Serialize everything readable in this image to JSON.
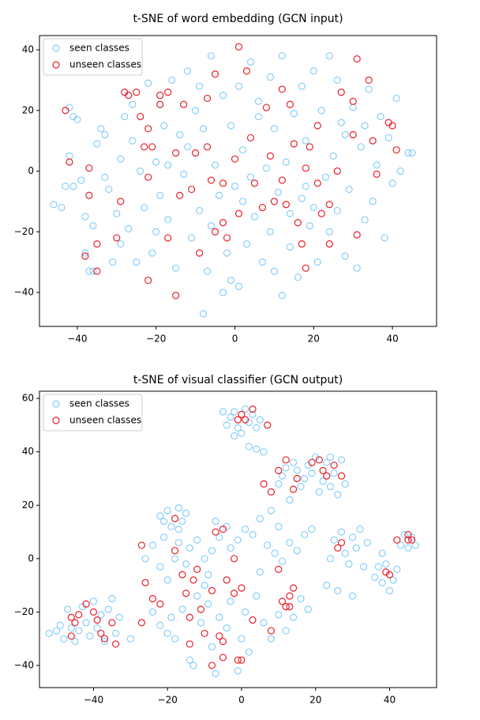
{
  "chart_data": [
    {
      "type": "scatter",
      "title": "t-SNE of word embedding (GCN input)",
      "legend": "upper left",
      "xlim": [
        -49.6,
        51.2
      ],
      "ylim": [
        -51.2,
        44.7
      ],
      "xticks": [
        {
          "value": -40,
          "label": "−40"
        },
        {
          "value": -20,
          "label": "−20"
        },
        0,
        20,
        40
      ],
      "yticks": [
        {
          "value": -40,
          "label": "−40"
        },
        {
          "value": -20,
          "label": "−20"
        },
        0,
        20,
        40
      ],
      "series": [
        {
          "name": "seen classes",
          "color": "#87cefa",
          "x": [
            -46,
            -44,
            -43,
            -42,
            -41,
            -42,
            -41,
            -40,
            -39,
            -38,
            -37,
            -36,
            -36,
            -35,
            -34,
            -33,
            -32,
            -31,
            -30,
            -29,
            -28,
            -27,
            -26,
            -25,
            -24,
            -23,
            -22,
            -21,
            -20,
            -19,
            -18,
            -17,
            -16,
            -15,
            -14,
            -13,
            -12,
            -11,
            -10,
            -9,
            -8,
            -8,
            -7,
            -6,
            -5,
            -4,
            -3,
            -2,
            -1,
            -1,
            0,
            1,
            1,
            2,
            3,
            4,
            5,
            6,
            7,
            8,
            9,
            9,
            10,
            11,
            12,
            12,
            13,
            14,
            15,
            16,
            17,
            17,
            18,
            19,
            20,
            21,
            22,
            23,
            24,
            25,
            26,
            26,
            27,
            28,
            29,
            30,
            31,
            32,
            33,
            34,
            35,
            36,
            37,
            38,
            39,
            40,
            41,
            42,
            44,
            45,
            -33,
            -29,
            -20,
            -12,
            -6,
            2,
            6,
            14,
            20,
            28,
            -38,
            -26,
            -17,
            -3,
            10,
            18,
            33,
            -9,
            4,
            24
          ],
          "y": [
            -11,
            -12,
            -5,
            5,
            -5,
            21,
            18,
            17,
            -3,
            -27,
            -33,
            -33,
            -18,
            9,
            14,
            12,
            -6,
            -30,
            -14,
            4,
            18,
            -19,
            10,
            -30,
            0,
            -12,
            29,
            -27,
            3,
            -8,
            15,
            -16,
            30,
            -32,
            12,
            -1,
            33,
            -22,
            20,
            -13,
            -47,
            14,
            -33,
            38,
            2,
            -8,
            25,
            -27,
            15,
            -36,
            -5,
            28,
            -38,
            7,
            -24,
            36,
            -15,
            18,
            -30,
            1,
            31,
            -20,
            14,
            -7,
            38,
            -41,
            3,
            -25,
            19,
            -35,
            28,
            -9,
            10,
            -18,
            33,
            -30,
            20,
            -2,
            -20,
            5,
            30,
            -13,
            16,
            -28,
            -6,
            21,
            -32,
            8,
            -16,
            27,
            -10,
            2,
            18,
            -22,
            11,
            -4,
            24,
            0,
            6,
            6,
            -2,
            -24,
            -20,
            8,
            -18,
            -10,
            23,
            -14,
            -12,
            12,
            -15,
            22,
            2,
            -40,
            -33,
            -5,
            15,
            28,
            -2,
            38
          ]
        },
        {
          "name": "unseen classes",
          "color": "#e8202a",
          "x": [
            -43,
            -42,
            -37,
            -37,
            -38,
            -35,
            -35,
            -30,
            -29,
            -28,
            -27,
            -25,
            -24,
            -23,
            -22,
            -22,
            -22,
            -21,
            -19,
            -19,
            -17,
            -17,
            -15,
            -15,
            -14,
            -13,
            -11,
            -10,
            -9,
            -7,
            -7,
            -6,
            -5,
            -5,
            -3,
            -3,
            -2,
            0,
            1,
            1,
            3,
            4,
            5,
            7,
            8,
            9,
            10,
            12,
            12,
            13,
            14,
            15,
            16,
            17,
            18,
            18,
            19,
            21,
            21,
            22,
            24,
            24,
            26,
            27,
            30,
            30,
            31,
            31,
            34,
            35,
            36,
            39,
            40,
            41
          ],
          "y": [
            20,
            3,
            1,
            -8,
            -28,
            -33,
            -24,
            -22,
            -10,
            26,
            25,
            26,
            18,
            8,
            14,
            -2,
            -36,
            8,
            22,
            25,
            26,
            -22,
            6,
            -41,
            -8,
            22,
            -6,
            6,
            -27,
            24,
            8,
            -3,
            32,
            -20,
            -17,
            -4,
            -22,
            4,
            -14,
            41,
            33,
            11,
            -4,
            -12,
            21,
            5,
            -10,
            -3,
            27,
            -11,
            22,
            9,
            -17,
            -24,
            1,
            -32,
            8,
            15,
            -4,
            -14,
            -11,
            -24,
            0,
            26,
            12,
            23,
            -21,
            37,
            30,
            10,
            -1,
            16,
            15,
            7
          ]
        }
      ]
    },
    {
      "type": "scatter",
      "title": "t-SNE of visual classifier (GCN output)",
      "legend": "upper left",
      "xlim": [
        -54.6,
        52.7
      ],
      "ylim": [
        -48.3,
        62.7
      ],
      "xticks": [
        {
          "value": -40,
          "label": "−40"
        },
        {
          "value": -20,
          "label": "−20"
        },
        0,
        20,
        40
      ],
      "yticks": [
        {
          "value": -40,
          "label": "−40"
        },
        {
          "value": -20,
          "label": "−20"
        },
        0,
        20,
        40,
        60
      ],
      "series": [
        {
          "name": "seen classes",
          "color": "#87cefa",
          "x": [
            -4,
            -3,
            -2,
            -1,
            1,
            2,
            3,
            4,
            5,
            -5,
            0,
            2,
            4,
            6,
            -2,
            10,
            11,
            12,
            14,
            15,
            16,
            17,
            18,
            20,
            21,
            22,
            23,
            24,
            25,
            26,
            27,
            28,
            13,
            19,
            24,
            -22,
            -21,
            -20,
            -19,
            -17,
            -16,
            -15,
            -17,
            -26,
            -24,
            -22,
            -21,
            -20,
            -18,
            -17,
            -15,
            -14,
            -12,
            -10,
            -9,
            -8,
            -7,
            -6,
            -4,
            -3,
            -1,
            1,
            3,
            5,
            7,
            9,
            11,
            13,
            15,
            17,
            19,
            8,
            10,
            24,
            25,
            27,
            28,
            29,
            30,
            31,
            32,
            33,
            34,
            23,
            26,
            30,
            36,
            37,
            38,
            39,
            41,
            42,
            43,
            44,
            45,
            46,
            47,
            40,
            38,
            -52,
            -50,
            -49,
            -48,
            -47,
            -46,
            -45,
            -44,
            -43,
            -42,
            -41,
            -40,
            -39,
            -38,
            -37,
            -36,
            -35,
            -34,
            -33,
            -30,
            -22,
            -20,
            -19,
            -18,
            -16,
            -14,
            -13,
            -12,
            -11,
            -9,
            -8,
            -7,
            -6,
            -4,
            -3,
            -1,
            0,
            1,
            2,
            4,
            6,
            8,
            10,
            12,
            14,
            16,
            18,
            -24,
            -10,
            5
          ],
          "y": [
            50,
            53,
            55,
            49,
            56,
            51,
            54,
            49,
            52,
            55,
            47,
            42,
            41,
            40,
            46,
            28,
            31,
            34,
            36,
            33,
            27,
            30,
            35,
            38,
            25,
            29,
            36,
            27,
            32,
            24,
            37,
            28,
            22,
            32,
            38,
            16,
            14,
            18,
            12,
            19,
            14,
            17,
            11,
            0,
            5,
            -3,
            8,
            -8,
            0,
            6,
            -2,
            4,
            7,
            0,
            -6,
            3,
            14,
            8,
            12,
            4,
            7,
            11,
            9,
            15,
            5,
            2,
            -1,
            6,
            3,
            9,
            11,
            18,
            12,
            0,
            7,
            10,
            2,
            -2,
            8,
            4,
            11,
            -3,
            6,
            -10,
            -12,
            -14,
            -7,
            -3,
            -9,
            -2,
            -8,
            -4,
            5,
            9,
            4,
            8,
            5,
            -12,
            2,
            -28,
            -27,
            -25,
            -30,
            -19,
            -26,
            -31,
            -27,
            -18,
            -24,
            -29,
            -16,
            -26,
            -21,
            -31,
            -19,
            -15,
            -28,
            -22,
            -30,
            -25,
            -28,
            -22,
            -30,
            -19,
            -38,
            -40,
            -14,
            -24,
            -17,
            -33,
            -43,
            -22,
            -26,
            -16,
            -42,
            -30,
            -20,
            -35,
            -14,
            -24,
            -30,
            -21,
            -27,
            -22,
            -15,
            -19,
            -20,
            -10,
            -5
          ]
        },
        {
          "name": "unseen classes",
          "color": "#e8202a",
          "x": [
            -46,
            -46,
            -45,
            -44,
            -42,
            -40,
            -39,
            -38,
            -37,
            -35,
            -34,
            -27,
            -27,
            -26,
            -24,
            -22,
            -18,
            -18,
            -16,
            -15,
            -14,
            -14,
            -13,
            -12,
            -11,
            -10,
            -8,
            -8,
            -7,
            -6,
            -5,
            -5,
            -5,
            -4,
            -2,
            -2,
            -1,
            0,
            0,
            -1,
            0,
            1,
            3,
            3,
            6,
            7,
            8,
            8,
            10,
            10,
            11,
            12,
            12,
            13,
            13,
            14,
            14,
            15,
            19,
            21,
            22,
            23,
            25,
            26,
            27,
            27,
            39,
            40,
            42,
            45,
            46,
            45
          ],
          "y": [
            -29,
            -22,
            -24,
            -21,
            -17,
            -20,
            -23,
            -28,
            -30,
            -24,
            -32,
            -24,
            5,
            -9,
            -15,
            -17,
            3,
            15,
            -6,
            -13,
            -32,
            -22,
            -8,
            -4,
            -19,
            -28,
            -40,
            -12,
            10,
            -29,
            -31,
            -37,
            11,
            -8,
            -13,
            0,
            -38,
            -38,
            -11,
            52,
            54,
            52,
            56,
            -23,
            28,
            50,
            -27,
            25,
            -4,
            33,
            -16,
            -18,
            37,
            -14,
            -18,
            26,
            -11,
            30,
            36,
            37,
            33,
            31,
            35,
            4,
            6,
            31,
            -5,
            -6,
            7,
            7,
            7,
            9
          ]
        }
      ]
    }
  ]
}
